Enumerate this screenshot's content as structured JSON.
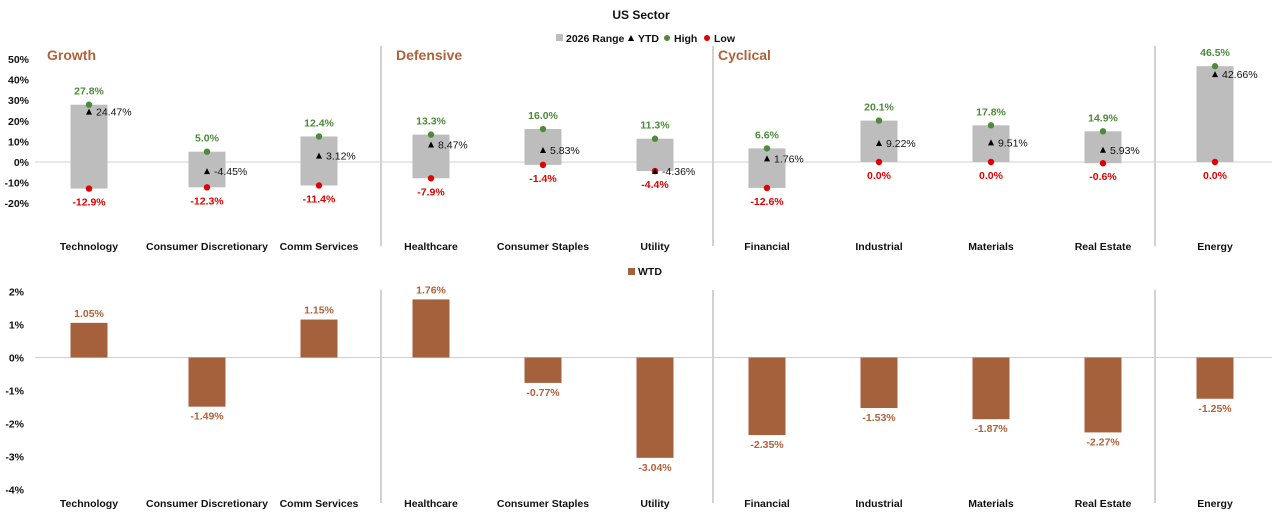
{
  "colors": {
    "range": "#BDBDBD",
    "ytd": "#000000",
    "high": "#4E8A3A",
    "low": "#E00000",
    "wtd": "#A5603C",
    "group_label": "#B0623A",
    "separator": "#A6A6A6",
    "axis": "#D0D0D0"
  },
  "chart_data": [
    {
      "type": "bar",
      "title": "US Sector",
      "legend": {
        "placement": "top-center",
        "entries": [
          {
            "label": "2026 Range",
            "marker": "square",
            "color": "#BDBDBD"
          },
          {
            "label": "YTD",
            "marker": "triangle",
            "color": "#000000"
          },
          {
            "label": "High",
            "marker": "circle",
            "color": "#4E8A3A"
          },
          {
            "label": "Low",
            "marker": "circle",
            "color": "#E00000"
          }
        ]
      },
      "groups": [
        {
          "label": "Growth",
          "categories": [
            "Technology",
            "Consumer Discretionary",
            "Comm Services"
          ]
        },
        {
          "label": "Defensive",
          "categories": [
            "Healthcare",
            "Consumer Staples",
            "Utility"
          ]
        },
        {
          "label": "Cyclical",
          "categories": [
            "Financial",
            "Industrial",
            "Materials",
            "Real Estate"
          ]
        },
        {
          "label": "",
          "categories": [
            "Energy"
          ]
        }
      ],
      "categories": [
        "Technology",
        "Consumer Discretionary",
        "Comm Services",
        "Healthcare",
        "Consumer Staples",
        "Utility",
        "Financial",
        "Industrial",
        "Materials",
        "Real Estate",
        "Energy"
      ],
      "series": [
        {
          "name": "High",
          "values": [
            27.8,
            5.0,
            12.4,
            13.3,
            16.0,
            11.3,
            6.6,
            20.1,
            17.8,
            14.9,
            46.5
          ],
          "labels": [
            "27.8%",
            "5.0%",
            "12.4%",
            "13.3%",
            "16.0%",
            "11.3%",
            "6.6%",
            "20.1%",
            "17.8%",
            "14.9%",
            "46.5%"
          ]
        },
        {
          "name": "Low",
          "values": [
            -12.9,
            -12.3,
            -11.4,
            -7.9,
            -1.4,
            -4.4,
            -12.6,
            0.0,
            0.0,
            -0.6,
            0.0
          ],
          "labels": [
            "-12.9%",
            "-12.3%",
            "-11.4%",
            "-7.9%",
            "-1.4%",
            "-4.4%",
            "-12.6%",
            "0.0%",
            "0.0%",
            "-0.6%",
            "0.0%"
          ]
        },
        {
          "name": "YTD",
          "values": [
            24.47,
            -4.45,
            3.12,
            8.47,
            5.83,
            -4.36,
            1.76,
            9.22,
            9.51,
            5.93,
            42.66
          ],
          "labels": [
            "24.47%",
            "-4.45%",
            "3.12%",
            "8.47%",
            "5.83%",
            "-4.36%",
            "1.76%",
            "9.22%",
            "9.51%",
            "5.93%",
            "42.66%"
          ]
        }
      ],
      "yticks": [
        50,
        40,
        30,
        20,
        10,
        0,
        -10,
        -20
      ],
      "ytick_labels": [
        "50%",
        "40%",
        "30%",
        "20%",
        "10%",
        "0%",
        "-10%",
        "-20%"
      ],
      "ylim": [
        -20,
        50
      ],
      "grid": false
    },
    {
      "type": "bar",
      "title": "",
      "legend": {
        "placement": "top-center",
        "entries": [
          {
            "label": "WTD",
            "marker": "square",
            "color": "#A5603C"
          }
        ]
      },
      "categories": [
        "Technology",
        "Consumer Discretionary",
        "Comm Services",
        "Healthcare",
        "Consumer Staples",
        "Utility",
        "Financial",
        "Industrial",
        "Materials",
        "Real Estate",
        "Energy"
      ],
      "series": [
        {
          "name": "WTD",
          "values": [
            1.05,
            -1.49,
            1.15,
            1.76,
            -0.77,
            -3.04,
            -2.35,
            -1.53,
            -1.87,
            -2.27,
            -1.25
          ],
          "labels": [
            "1.05%",
            "-1.49%",
            "1.15%",
            "1.76%",
            "-0.77%",
            "-3.04%",
            "-2.35%",
            "-1.53%",
            "-1.87%",
            "-2.27%",
            "-1.25%"
          ]
        }
      ],
      "yticks": [
        2,
        1,
        0,
        -1,
        -2,
        -3,
        -4
      ],
      "ytick_labels": [
        "2%",
        "1%",
        "0%",
        "-1%",
        "-2%",
        "-3%",
        "-4%"
      ],
      "ylim": [
        -4,
        2
      ],
      "grid": false
    }
  ]
}
